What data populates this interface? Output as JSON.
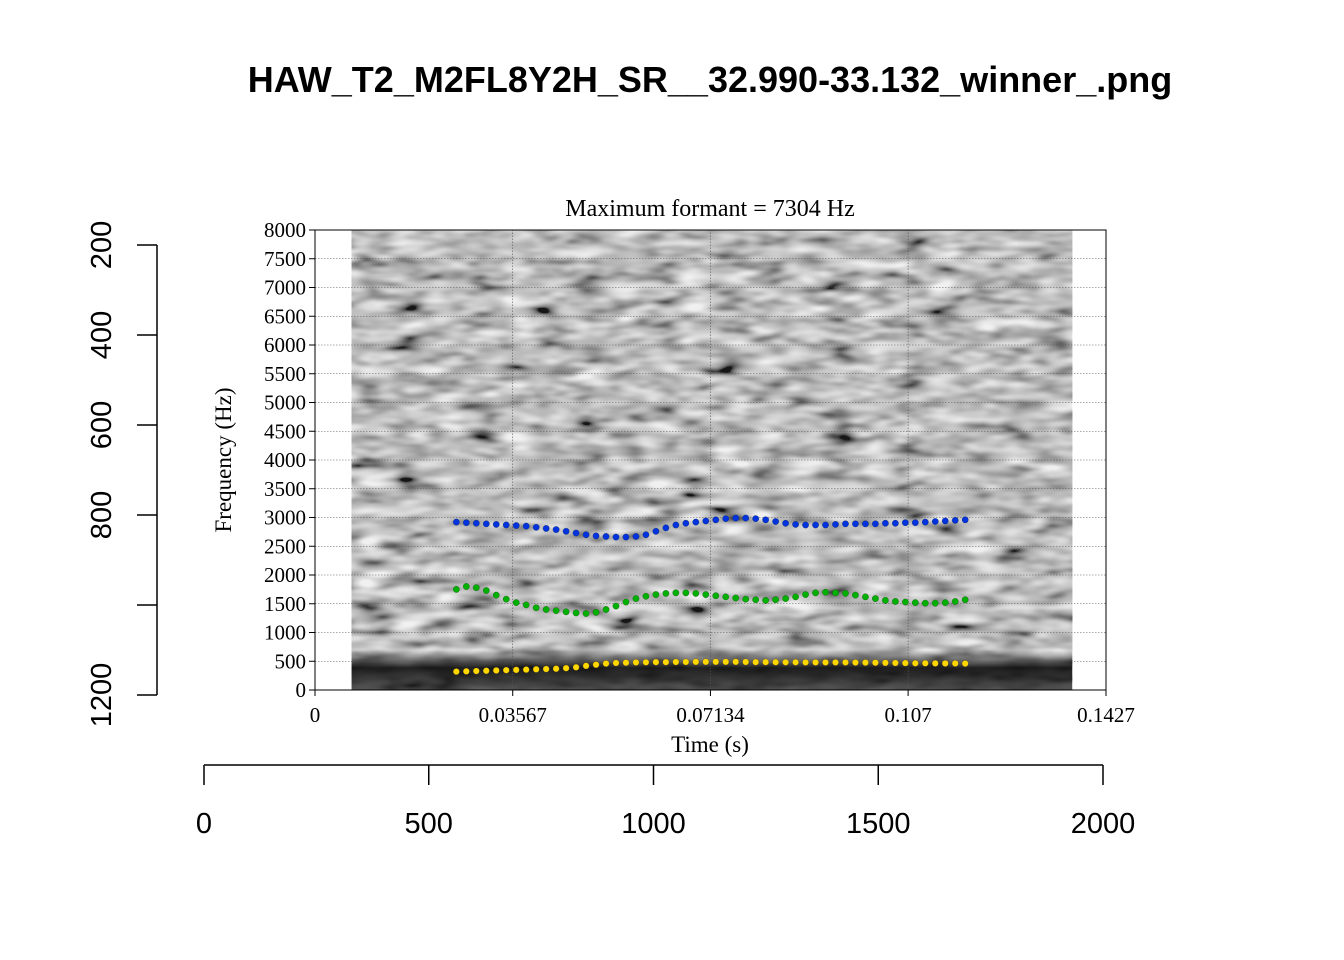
{
  "page_title": "HAW_T2_M2FL8Y2H_SR__32.990-33.132_winner_.png",
  "outer_axes": {
    "left": {
      "ticks": [
        200,
        400,
        600,
        800,
        1000,
        1200
      ],
      "tick_labels": [
        "200",
        "400",
        "600",
        "800",
        "",
        "1200"
      ],
      "range": [
        1200,
        200
      ]
    },
    "bottom": {
      "ticks": [
        0,
        500,
        1000,
        1500,
        2000
      ],
      "tick_labels": [
        "0",
        "500",
        "1000",
        "1500",
        "2000"
      ],
      "range": [
        0,
        2000
      ]
    }
  },
  "chart_data": {
    "type": "scatter",
    "title": "Maximum formant  =  7304 Hz",
    "xlabel": "Time (s)",
    "ylabel": "Frequency (Hz)",
    "xlim": [
      0,
      0.1427
    ],
    "ylim": [
      0,
      8000
    ],
    "x_ticks": [
      0,
      0.03567,
      0.07134,
      0.107,
      0.1427
    ],
    "x_tick_labels": [
      "0",
      "0.03567",
      "0.07134",
      "0.107",
      "0.1427"
    ],
    "y_ticks": [
      0,
      500,
      1000,
      1500,
      2000,
      2500,
      3000,
      3500,
      4000,
      4500,
      5000,
      5500,
      6000,
      6500,
      7000,
      7500,
      8000
    ],
    "y_tick_labels": [
      "0",
      "500",
      "1000",
      "1500",
      "2000",
      "2500",
      "3000",
      "3500",
      "4000",
      "4500",
      "5000",
      "5500",
      "6000",
      "6500",
      "7000",
      "7500",
      "8000"
    ],
    "grid": true,
    "spectrogram_time_range": [
      0.0066,
      0.1366
    ],
    "series": [
      {
        "color": "#ffd700",
        "x": [
          0.0255,
          0.0273,
          0.0291,
          0.0309,
          0.0327,
          0.0345,
          0.0363,
          0.0381,
          0.0399,
          0.0417,
          0.0435,
          0.0453,
          0.0471,
          0.0489,
          0.0507,
          0.0525,
          0.0543,
          0.0561,
          0.0579,
          0.0597,
          0.0615,
          0.0633,
          0.0651,
          0.0669,
          0.0687,
          0.0705,
          0.0723,
          0.0741,
          0.0759,
          0.0777,
          0.0795,
          0.0813,
          0.0831,
          0.0849,
          0.0867,
          0.0885,
          0.0903,
          0.0921,
          0.0939,
          0.0957,
          0.0975,
          0.0993,
          0.1011,
          0.1029,
          0.1047,
          0.1065,
          0.1083,
          0.1101,
          0.1119,
          0.1137,
          0.1155,
          0.1173
        ],
        "y": [
          320,
          325,
          330,
          335,
          340,
          345,
          350,
          355,
          360,
          365,
          370,
          380,
          395,
          420,
          440,
          460,
          470,
          475,
          480,
          482,
          485,
          485,
          487,
          488,
          490,
          490,
          490,
          490,
          490,
          488,
          485,
          485,
          483,
          482,
          482,
          480,
          480,
          480,
          480,
          480,
          478,
          477,
          475,
          473,
          470,
          468,
          465,
          465,
          463,
          462,
          462,
          460
        ]
      },
      {
        "color": "#00b000",
        "x": [
          0.0255,
          0.0273,
          0.0291,
          0.0309,
          0.0327,
          0.0345,
          0.0363,
          0.0381,
          0.0399,
          0.0417,
          0.0435,
          0.0453,
          0.0471,
          0.0489,
          0.0507,
          0.0525,
          0.0543,
          0.0561,
          0.0579,
          0.0597,
          0.0615,
          0.0633,
          0.0651,
          0.0669,
          0.0687,
          0.0705,
          0.0723,
          0.0741,
          0.0759,
          0.0777,
          0.0795,
          0.0813,
          0.0831,
          0.0849,
          0.0867,
          0.0885,
          0.0903,
          0.0921,
          0.0939,
          0.0957,
          0.0975,
          0.0993,
          0.1011,
          0.1029,
          0.1047,
          0.1065,
          0.1083,
          0.1101,
          0.1119,
          0.1137,
          0.1155,
          0.1173
        ],
        "y": [
          1750,
          1800,
          1780,
          1730,
          1650,
          1580,
          1520,
          1480,
          1430,
          1400,
          1380,
          1360,
          1340,
          1330,
          1350,
          1400,
          1460,
          1530,
          1590,
          1630,
          1660,
          1680,
          1690,
          1690,
          1680,
          1660,
          1640,
          1620,
          1600,
          1580,
          1570,
          1560,
          1570,
          1590,
          1620,
          1660,
          1690,
          1700,
          1690,
          1680,
          1650,
          1620,
          1590,
          1560,
          1540,
          1530,
          1520,
          1510,
          1510,
          1520,
          1540,
          1570
        ]
      },
      {
        "color": "#0033dd",
        "x": [
          0.0255,
          0.0273,
          0.0291,
          0.0309,
          0.0327,
          0.0345,
          0.0363,
          0.0381,
          0.0399,
          0.0417,
          0.0435,
          0.0453,
          0.0471,
          0.0489,
          0.0507,
          0.0525,
          0.0543,
          0.0561,
          0.0579,
          0.0597,
          0.0615,
          0.0633,
          0.0651,
          0.0669,
          0.0687,
          0.0705,
          0.0723,
          0.0741,
          0.0759,
          0.0777,
          0.0795,
          0.0813,
          0.0831,
          0.0849,
          0.0867,
          0.0885,
          0.0903,
          0.0921,
          0.0939,
          0.0957,
          0.0975,
          0.0993,
          0.1011,
          0.1029,
          0.1047,
          0.1065,
          0.1083,
          0.1101,
          0.1119,
          0.1137,
          0.1155,
          0.1173
        ],
        "y": [
          2920,
          2910,
          2900,
          2890,
          2880,
          2870,
          2860,
          2850,
          2830,
          2810,
          2790,
          2760,
          2730,
          2700,
          2680,
          2670,
          2660,
          2660,
          2670,
          2700,
          2760,
          2820,
          2870,
          2900,
          2920,
          2940,
          2960,
          2980,
          2990,
          2990,
          2980,
          2960,
          2930,
          2900,
          2880,
          2870,
          2870,
          2870,
          2880,
          2890,
          2890,
          2890,
          2890,
          2900,
          2900,
          2910,
          2910,
          2920,
          2930,
          2940,
          2950,
          2960
        ]
      }
    ]
  }
}
